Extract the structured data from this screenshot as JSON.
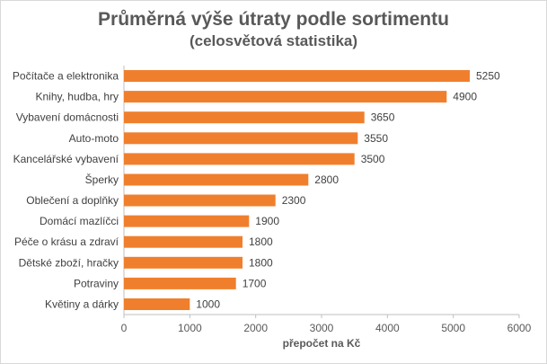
{
  "chart_data": {
    "type": "bar",
    "orientation": "horizontal",
    "title": "Průměrná výše útraty podle sortimentu",
    "subtitle": "(celosvětová statistika)",
    "xlabel": "přepočet na Kč",
    "ylabel": "",
    "categories": [
      "Počítače a elektronika",
      "Knihy, hudba, hry",
      "Vybavení domácnosti",
      "Auto-moto",
      "Kancelářské vybavení",
      "Šperky",
      "Oblečení a doplňky",
      "Domácí mazlíčci",
      "Péče o krásu a zdraví",
      "Dětské zboží, hračky",
      "Potraviny",
      "Květiny a dárky"
    ],
    "values": [
      5250,
      4900,
      3650,
      3550,
      3500,
      2800,
      2300,
      1900,
      1800,
      1800,
      1700,
      1000
    ],
    "xlim": [
      0,
      6000
    ],
    "xticks": [
      0,
      1000,
      2000,
      3000,
      4000,
      5000,
      6000
    ],
    "grid": false,
    "legend": "none",
    "bar_color": "#f07f2d"
  }
}
